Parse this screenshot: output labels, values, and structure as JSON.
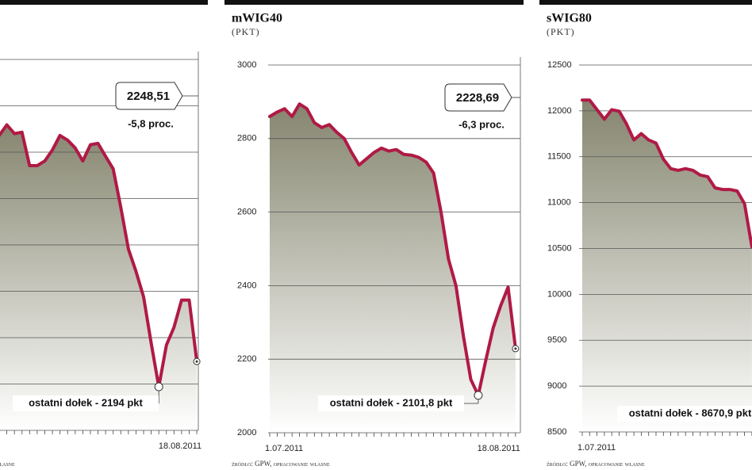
{
  "chart_data": [
    {
      "type": "line",
      "color": "#b01a45",
      "fill_color": "#85856f",
      "categories": [
        null,
        null,
        null,
        null,
        null,
        null,
        null,
        null,
        null,
        null,
        null,
        null,
        null,
        null,
        null,
        null,
        null,
        null,
        null,
        null,
        null,
        null,
        null,
        null,
        null,
        null,
        "18.08.2011"
      ],
      "values": [
        2736,
        2759,
        2740,
        2743,
        2671,
        2671,
        2681,
        2705,
        2736,
        2726,
        2709,
        2681,
        2716,
        2719,
        2691,
        2664,
        2581,
        2491,
        2443,
        2388,
        2288,
        2194,
        2284,
        2322,
        2381,
        2381,
        2248.51
      ],
      "ylim": [
        2100,
        2900
      ],
      "yticks": [
        2100,
        2200,
        2300,
        2400,
        2500,
        2600,
        2700,
        2800,
        2900
      ],
      "grid": true,
      "last_label": "2248,51",
      "change": "-5,8 proc.",
      "low_note": "ostatni dołek - 2194 pkt",
      "source": "źródło: GPW, opracowanie własne"
    },
    {
      "type": "line",
      "title": "mWIG40",
      "unit": "(PKT)",
      "color": "#b01a45",
      "fill_color": "#85856f",
      "categories": [
        "1.07.2011",
        null,
        null,
        null,
        null,
        null,
        null,
        null,
        null,
        null,
        null,
        null,
        null,
        null,
        null,
        null,
        null,
        null,
        null,
        null,
        null,
        null,
        null,
        null,
        null,
        null,
        null,
        null,
        null,
        null,
        null,
        null,
        null,
        "18.08.2011"
      ],
      "values": [
        2860,
        2872,
        2881,
        2860,
        2894,
        2881,
        2843,
        2830,
        2838,
        2817,
        2800,
        2762,
        2728,
        2745,
        2762,
        2774,
        2766,
        2770,
        2757,
        2755,
        2749,
        2736,
        2706,
        2600,
        2472,
        2400,
        2264,
        2145,
        2101.8,
        2196,
        2285,
        2345,
        2396,
        2228.69
      ],
      "ylim": [
        2000,
        3000
      ],
      "yticks": [
        2000,
        2200,
        2400,
        2600,
        2800,
        3000
      ],
      "grid": true,
      "last_label": "2228,69",
      "change": "-6,3 proc.",
      "low_note": "ostatni dołek - 2101,8 pkt",
      "source": "źródło: GPW, opracowanie własne"
    },
    {
      "type": "line",
      "title": "sWIG80",
      "unit": "(PKT)",
      "color": "#b01a45",
      "fill_color": "#85856f",
      "categories": [
        "1.07.2011",
        null,
        null,
        null,
        null,
        null,
        null,
        null,
        null,
        null,
        null,
        null,
        null,
        null,
        null,
        null,
        null,
        null,
        null,
        null,
        null,
        null,
        null,
        null
      ],
      "values": [
        12117,
        12117,
        12013,
        11909,
        12013,
        11996,
        11857,
        11683,
        11752,
        11683,
        11648,
        11474,
        11370,
        11352,
        11370,
        11352,
        11300,
        11283,
        11161,
        11143,
        11143,
        11126,
        10987,
        10517
      ],
      "ylim": [
        8500,
        12500
      ],
      "yticks": [
        8500,
        9000,
        9500,
        10000,
        10500,
        11000,
        11500,
        12000,
        12500
      ],
      "grid": true,
      "low_note": "ostatni dołek - 8670,9 pkt",
      "source": "źródło: GPW, opracowanie własne"
    }
  ]
}
